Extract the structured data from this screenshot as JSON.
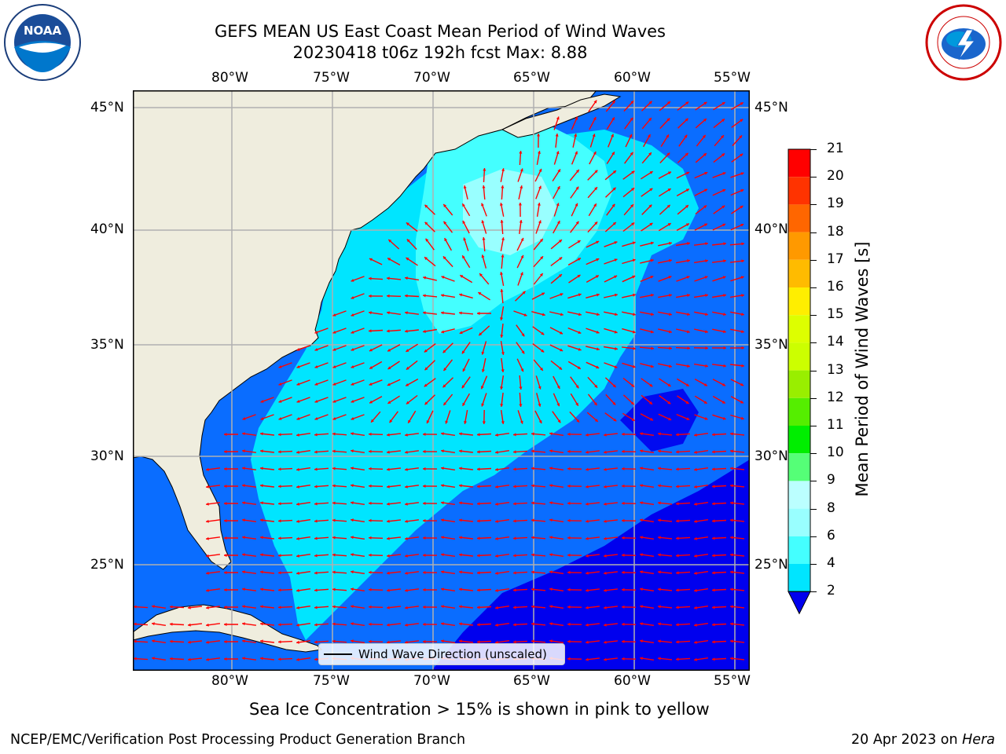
{
  "title": {
    "line1": "GEFS MEAN US East Coast Mean Period of Wind Waves",
    "line2": "20230418 t06z 192h fcst   Max: 8.88"
  },
  "logos": {
    "left": {
      "name": "noaa-logo",
      "text": "NOAA"
    },
    "right": {
      "name": "nws-logo"
    }
  },
  "map": {
    "lon_labels": [
      "80°W",
      "75°W",
      "70°W",
      "65°W",
      "60°W",
      "55°W"
    ],
    "lat_labels": [
      "45°N",
      "40°N",
      "35°N",
      "30°N",
      "25°N"
    ],
    "land_color": "#efedde",
    "grid_color": "#b0b0b0",
    "arrow_color": "#ff0000",
    "legend_label": "Wind Wave Direction (unscaled)"
  },
  "colorbar": {
    "title": "Mean Period of Wind Waves [s]",
    "ticks": [
      "2",
      "4",
      "6",
      "8",
      "9",
      "10",
      "11",
      "12",
      "13",
      "14",
      "15",
      "16",
      "17",
      "18",
      "19",
      "20",
      "21"
    ],
    "colors": [
      "#0066ff",
      "#00e5ff",
      "#44ffff",
      "#99ffff",
      "#bbffff",
      "#55ff77",
      "#00ee00",
      "#55ee00",
      "#99ee00",
      "#ccff00",
      "#ddff00",
      "#ffee00",
      "#ffbb00",
      "#ff9900",
      "#ff6600",
      "#ff3300",
      "#ff0000"
    ],
    "extend_color": "#0000ee"
  },
  "caption": "Sea Ice Concentration > 15% is shown in pink to yellow",
  "footer": {
    "left": "NCEP/EMC/Verification Post Processing Product Generation Branch",
    "date": "20 Apr 2023 on ",
    "machine": "Hera"
  }
}
